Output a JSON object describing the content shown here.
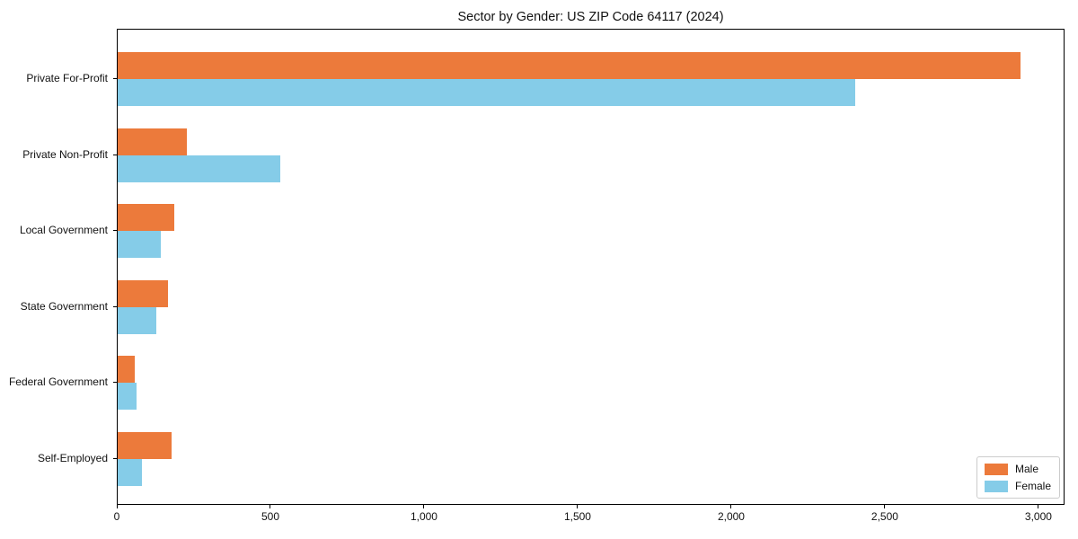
{
  "title": "Sector by Gender: US ZIP Code 64117 (2024)",
  "colors": {
    "male": "#ec7a3b",
    "female": "#85cce8",
    "axis": "#000000",
    "legend_border": "#cccccc",
    "background": "#ffffff"
  },
  "chart_data": {
    "type": "bar",
    "orientation": "horizontal",
    "title": "Sector by Gender: US ZIP Code 64117 (2024)",
    "xlabel": "",
    "ylabel": "",
    "categories": [
      "Private For-Profit",
      "Private Non-Profit",
      "Local Government",
      "State Government",
      "Federal Government",
      "Self-Employed"
    ],
    "series": [
      {
        "name": "Male",
        "color": "#ec7a3b",
        "values": [
          2940,
          225,
          185,
          165,
          55,
          175
        ]
      },
      {
        "name": "Female",
        "color": "#85cce8",
        "values": [
          2400,
          530,
          140,
          125,
          60,
          80
        ]
      }
    ],
    "xlim": [
      0,
      3085
    ],
    "xticks": [
      0,
      500,
      1000,
      1500,
      2000,
      2500,
      3000
    ],
    "xtick_labels": [
      "0",
      "500",
      "1,000",
      "1,500",
      "2,000",
      "2,500",
      "3,000"
    ],
    "grid": false,
    "legend_position": "lower right"
  }
}
